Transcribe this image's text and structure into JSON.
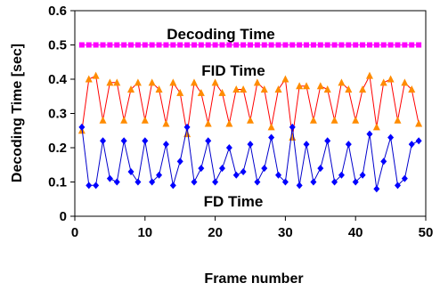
{
  "chart_data": {
    "type": "line",
    "xlabel": "Frame number",
    "ylabel": "Decoding Time [sec]",
    "xlim": [
      0,
      50
    ],
    "ylim": [
      0,
      0.6
    ],
    "xticks": [
      0,
      10,
      20,
      30,
      40,
      50
    ],
    "xtick_labels": [
      "0",
      "10",
      "20",
      "30",
      "40",
      "50"
    ],
    "yticks": [
      0,
      0.1,
      0.2,
      0.3,
      0.4,
      0.5,
      0.6
    ],
    "ytick_labels": [
      "0",
      "0.1",
      "0.2",
      "0.3",
      "0.4",
      "0.5",
      "0.6"
    ],
    "grid": false,
    "legend": "none",
    "annotations": [
      {
        "text": "Decoding Time",
        "series": "decoding"
      },
      {
        "text": "FID Time",
        "series": "fid"
      },
      {
        "text": "FD Time",
        "series": "fd"
      }
    ],
    "x": [
      1,
      2,
      3,
      4,
      5,
      6,
      7,
      8,
      9,
      10,
      11,
      12,
      13,
      14,
      15,
      16,
      17,
      18,
      19,
      20,
      21,
      22,
      23,
      24,
      25,
      26,
      27,
      28,
      29,
      30,
      31,
      32,
      33,
      34,
      35,
      36,
      37,
      38,
      39,
      40,
      41,
      42,
      43,
      44,
      45,
      46,
      47,
      48,
      49
    ],
    "series": [
      {
        "key": "decoding",
        "color": "#ff00ff",
        "marker": "square",
        "values": [
          0.5,
          0.5,
          0.5,
          0.5,
          0.5,
          0.5,
          0.5,
          0.5,
          0.5,
          0.5,
          0.5,
          0.5,
          0.5,
          0.5,
          0.5,
          0.5,
          0.5,
          0.5,
          0.5,
          0.5,
          0.5,
          0.5,
          0.5,
          0.5,
          0.5,
          0.5,
          0.5,
          0.5,
          0.5,
          0.5,
          0.5,
          0.5,
          0.5,
          0.5,
          0.5,
          0.5,
          0.5,
          0.5,
          0.5,
          0.5,
          0.5,
          0.5,
          0.5,
          0.5,
          0.5,
          0.5,
          0.5,
          0.5,
          0.5
        ]
      },
      {
        "key": "fid",
        "color": "#ff0000",
        "marker_color": "#ff8c00",
        "marker": "triangle",
        "values": [
          0.25,
          0.4,
          0.41,
          0.28,
          0.39,
          0.39,
          0.28,
          0.37,
          0.39,
          0.28,
          0.39,
          0.37,
          0.27,
          0.39,
          0.36,
          0.24,
          0.39,
          0.36,
          0.27,
          0.39,
          0.36,
          0.27,
          0.37,
          0.37,
          0.28,
          0.39,
          0.37,
          0.26,
          0.37,
          0.4,
          0.23,
          0.38,
          0.38,
          0.28,
          0.38,
          0.37,
          0.28,
          0.39,
          0.37,
          0.28,
          0.37,
          0.41,
          0.26,
          0.39,
          0.4,
          0.28,
          0.39,
          0.37,
          0.27
        ]
      },
      {
        "key": "fd",
        "color": "#0000cc",
        "marker_color": "#0000ff",
        "marker": "diamond",
        "values": [
          0.26,
          0.09,
          0.09,
          0.22,
          0.11,
          0.1,
          0.22,
          0.13,
          0.1,
          0.22,
          0.1,
          0.12,
          0.21,
          0.09,
          0.16,
          0.26,
          0.1,
          0.14,
          0.22,
          0.1,
          0.14,
          0.2,
          0.12,
          0.13,
          0.21,
          0.1,
          0.14,
          0.23,
          0.12,
          0.1,
          0.26,
          0.09,
          0.21,
          0.1,
          0.14,
          0.22,
          0.1,
          0.12,
          0.21,
          0.1,
          0.12,
          0.24,
          0.08,
          0.16,
          0.23,
          0.09,
          0.11,
          0.21,
          0.22
        ]
      }
    ]
  }
}
